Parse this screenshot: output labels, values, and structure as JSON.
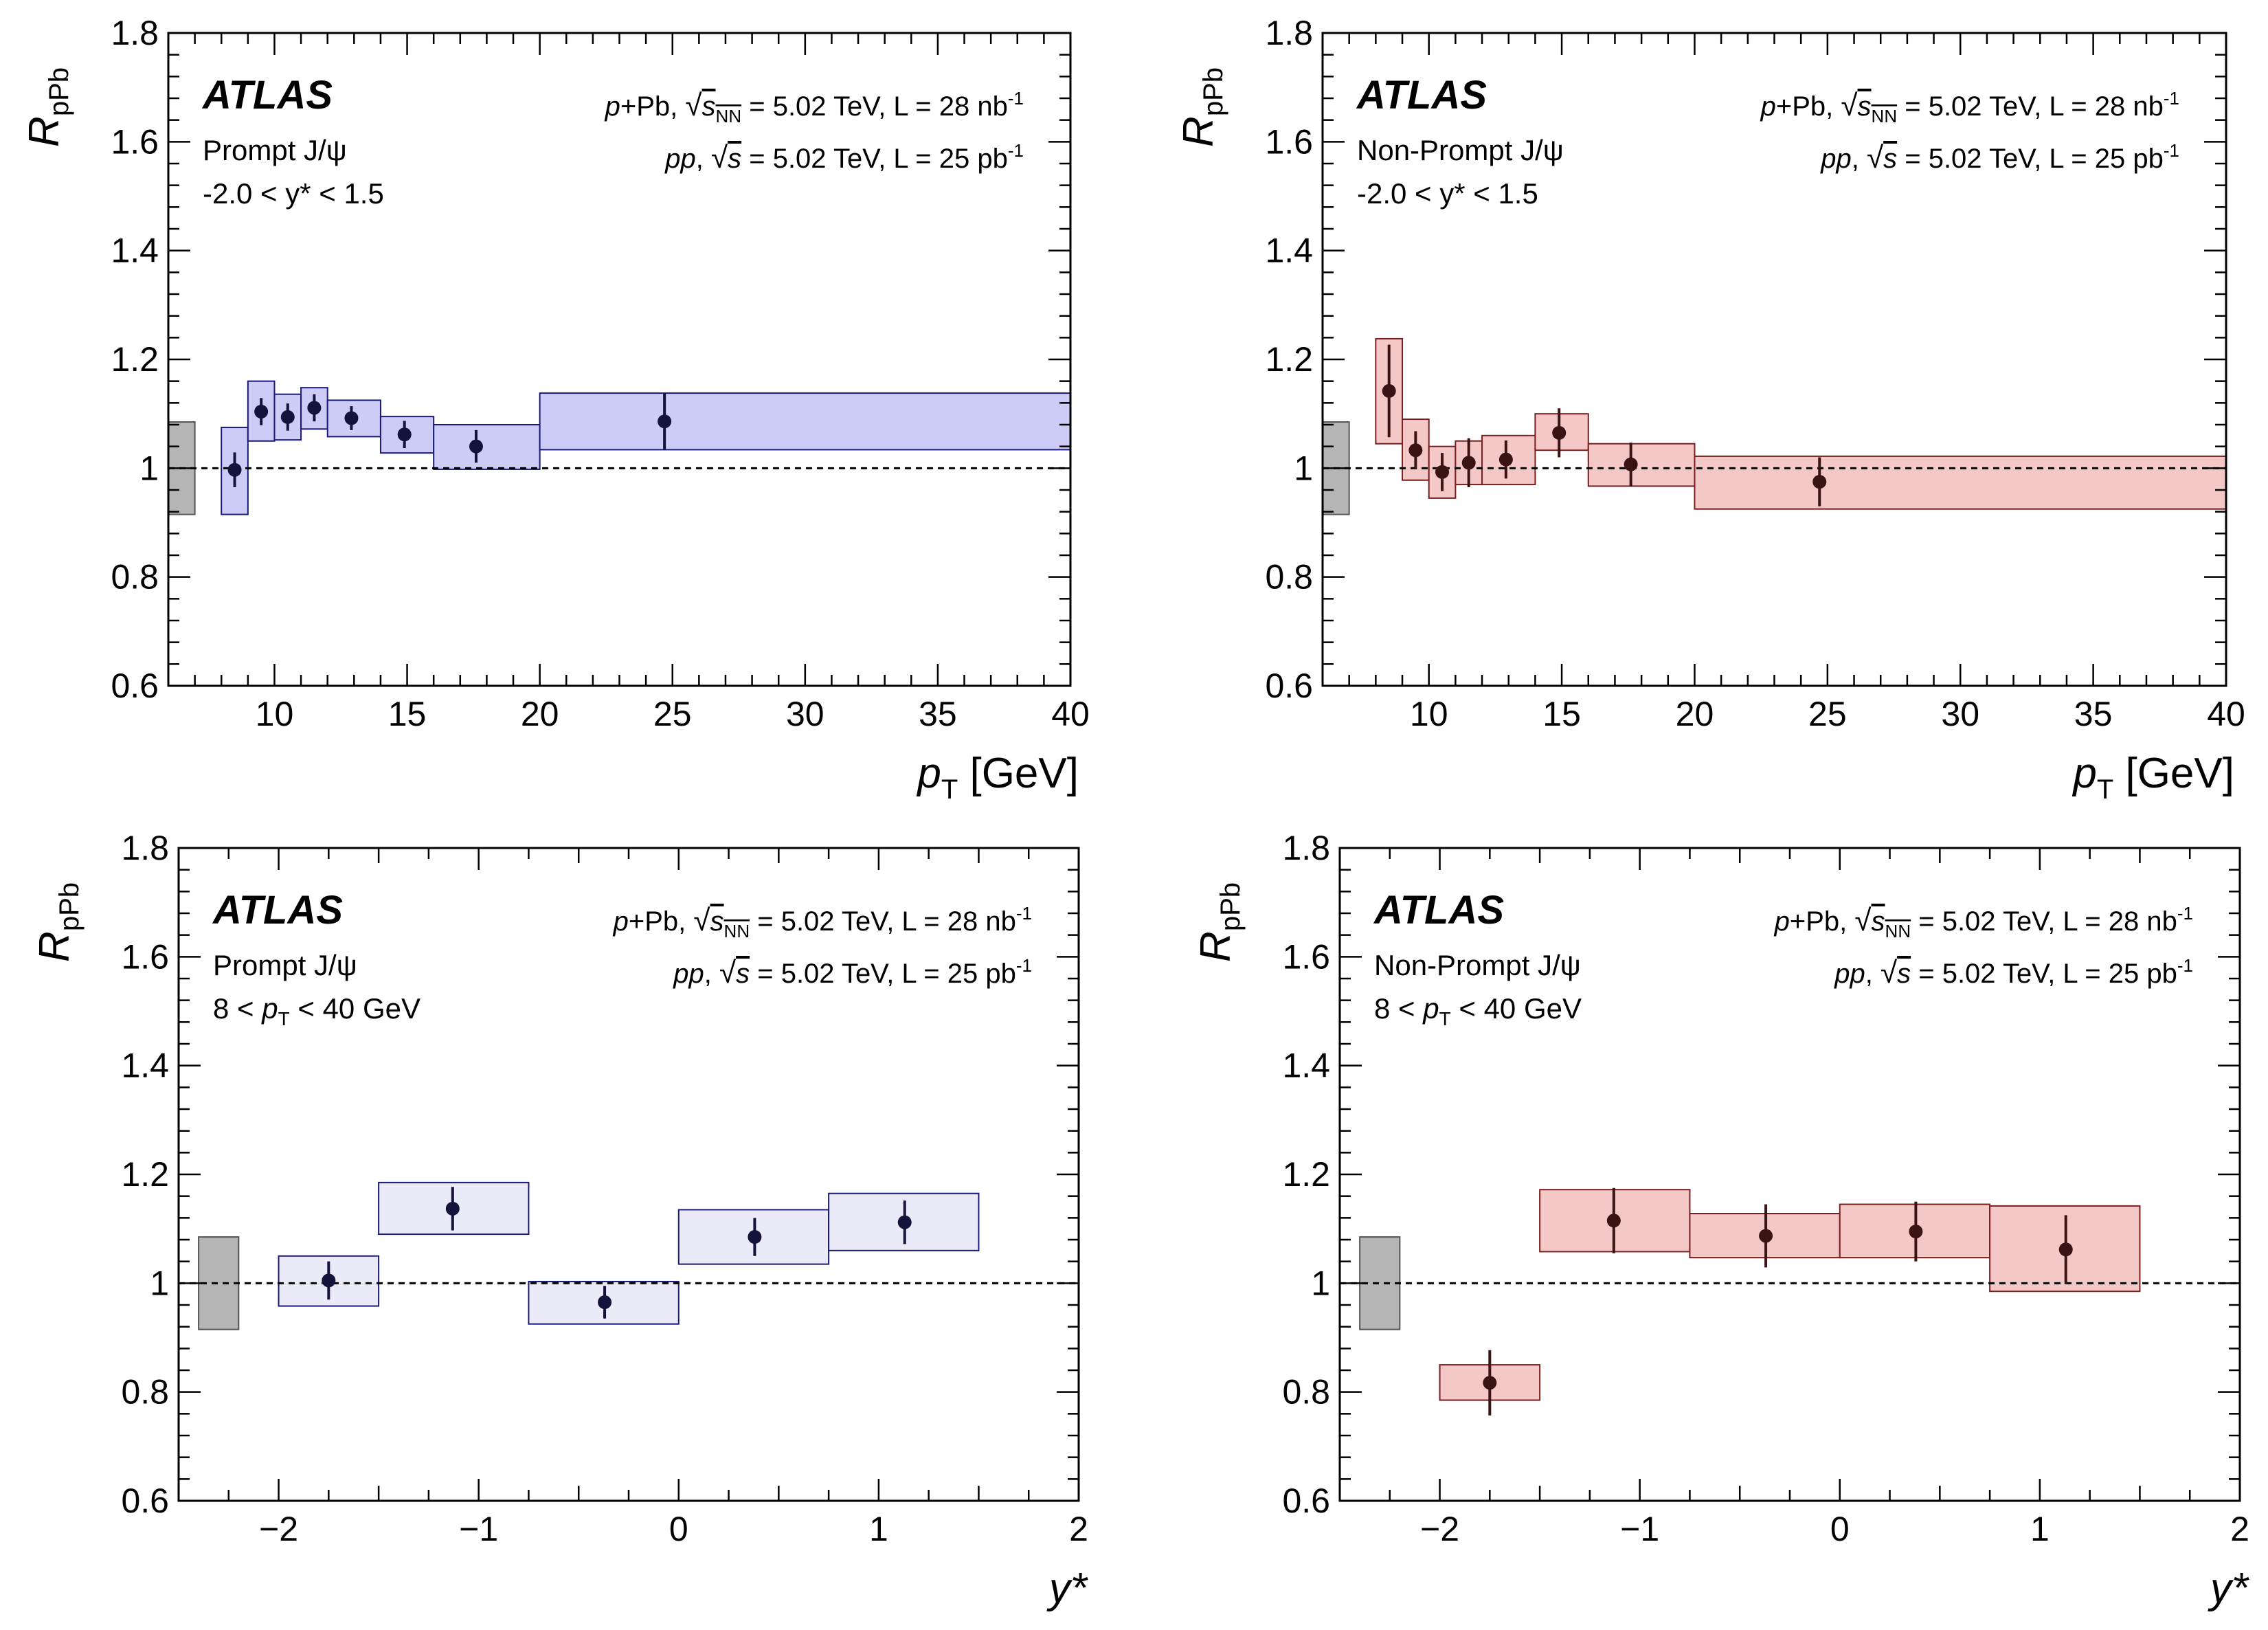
{
  "colors": {
    "blue_fill": "#ccccf7",
    "blue_stroke": "#1a1a7a",
    "blue_point": "#13133c",
    "lightblue_fill": "#eaeaf8",
    "red_fill": "#f5c8c8",
    "red_stroke": "#7a1f1f",
    "red_point": "#3a1414",
    "norm_fill": "#b5b5b5"
  },
  "chart_data": [
    {
      "type": "scatter",
      "title": "ATLAS",
      "ylabel_main": "R",
      "ylabel_sub": "pPb",
      "xlabel_main": "p",
      "xlabel_sub": "T",
      "xlabel_suffix": " [GeV]",
      "xlim": [
        6,
        40
      ],
      "ylim": [
        0.6,
        1.8
      ],
      "xticks": [
        10,
        15,
        20,
        25,
        30,
        35,
        40
      ],
      "xtick_labels": [
        "10",
        "15",
        "20",
        "25",
        "30",
        "35",
        "40"
      ],
      "yticks": [
        0.6,
        0.8,
        1.0,
        1.2,
        1.4,
        1.6,
        1.8
      ],
      "ytick_labels": [
        "0.6",
        "0.8",
        "1",
        "1.2",
        "1.4",
        "1.6",
        "1.8"
      ],
      "reference_line": 1.0,
      "legend_lines": [
        "Prompt J/ψ",
        "-2.0 < y* < 1.5"
      ],
      "info_line1": {
        "pre": "p",
        "mid": "+Pb, ",
        "sqrt": "s",
        "sqrt_sub": "NN",
        "post": " = 5.02 TeV, L = 28 nb",
        "sup": "-1"
      },
      "info_line2": {
        "pre": "pp",
        "mid": ", ",
        "sqrt": "s",
        "sqrt_sub": "",
        "post": " = 5.02 TeV, L = 25 pb",
        "sup": "-1"
      },
      "style": "blue",
      "normalization_box": {
        "x_low": 6,
        "x_high": 7,
        "y_low": 0.915,
        "y_high": 1.085
      },
      "points": [
        {
          "x": 8.5,
          "y": 0.997,
          "x_low": 8,
          "x_high": 9,
          "err": 0.032,
          "sys_low": 0.915,
          "sys_high": 1.075
        },
        {
          "x": 9.5,
          "y": 1.104,
          "x_low": 9,
          "x_high": 10,
          "err": 0.025,
          "sys_low": 1.05,
          "sys_high": 1.16
        },
        {
          "x": 10.5,
          "y": 1.094,
          "x_low": 10,
          "x_high": 11,
          "err": 0.025,
          "sys_low": 1.052,
          "sys_high": 1.136
        },
        {
          "x": 11.5,
          "y": 1.111,
          "x_low": 11,
          "x_high": 12,
          "err": 0.025,
          "sys_low": 1.072,
          "sys_high": 1.148
        },
        {
          "x": 12.9,
          "y": 1.092,
          "x_low": 12,
          "x_high": 14,
          "err": 0.022,
          "sys_low": 1.058,
          "sys_high": 1.125
        },
        {
          "x": 14.9,
          "y": 1.062,
          "x_low": 14,
          "x_high": 16,
          "err": 0.025,
          "sys_low": 1.028,
          "sys_high": 1.095
        },
        {
          "x": 17.6,
          "y": 1.04,
          "x_low": 16,
          "x_high": 20,
          "err": 0.03,
          "sys_low": 0.998,
          "sys_high": 1.08
        },
        {
          "x": 24.7,
          "y": 1.086,
          "x_low": 20,
          "x_high": 40,
          "err": 0.052,
          "sys_low": 1.034,
          "sys_high": 1.138
        }
      ]
    },
    {
      "type": "scatter",
      "title": "ATLAS",
      "ylabel_main": "R",
      "ylabel_sub": "pPb",
      "xlabel_main": "p",
      "xlabel_sub": "T",
      "xlabel_suffix": " [GeV]",
      "xlim": [
        6,
        40
      ],
      "ylim": [
        0.6,
        1.8
      ],
      "xticks": [
        10,
        15,
        20,
        25,
        30,
        35,
        40
      ],
      "xtick_labels": [
        "10",
        "15",
        "20",
        "25",
        "30",
        "35",
        "40"
      ],
      "yticks": [
        0.6,
        0.8,
        1.0,
        1.2,
        1.4,
        1.6,
        1.8
      ],
      "ytick_labels": [
        "0.6",
        "0.8",
        "1",
        "1.2",
        "1.4",
        "1.6",
        "1.8"
      ],
      "reference_line": 1.0,
      "legend_lines": [
        "Non-Prompt J/ψ",
        "-2.0 < y* < 1.5"
      ],
      "info_line1": {
        "pre": "p",
        "mid": "+Pb, ",
        "sqrt": "s",
        "sqrt_sub": "NN",
        "post": " = 5.02 TeV, L = 28 nb",
        "sup": "-1"
      },
      "info_line2": {
        "pre": "pp",
        "mid": ", ",
        "sqrt": "s",
        "sqrt_sub": "",
        "post": " = 5.02 TeV, L = 25 pb",
        "sup": "-1"
      },
      "style": "red",
      "normalization_box": {
        "x_low": 6,
        "x_high": 7,
        "y_low": 0.915,
        "y_high": 1.085
      },
      "points": [
        {
          "x": 8.5,
          "y": 1.142,
          "x_low": 8,
          "x_high": 9,
          "err": 0.085,
          "sys_low": 1.045,
          "sys_high": 1.238
        },
        {
          "x": 9.5,
          "y": 1.033,
          "x_low": 9,
          "x_high": 10,
          "err": 0.035,
          "sys_low": 0.978,
          "sys_high": 1.09
        },
        {
          "x": 10.5,
          "y": 0.993,
          "x_low": 10,
          "x_high": 11,
          "err": 0.035,
          "sys_low": 0.945,
          "sys_high": 1.04
        },
        {
          "x": 11.5,
          "y": 1.01,
          "x_low": 11,
          "x_high": 12,
          "err": 0.045,
          "sys_low": 0.97,
          "sys_high": 1.05
        },
        {
          "x": 12.9,
          "y": 1.016,
          "x_low": 12,
          "x_high": 14,
          "err": 0.035,
          "sys_low": 0.97,
          "sys_high": 1.06
        },
        {
          "x": 14.9,
          "y": 1.065,
          "x_low": 14,
          "x_high": 16,
          "err": 0.045,
          "sys_low": 1.033,
          "sys_high": 1.1
        },
        {
          "x": 17.6,
          "y": 1.007,
          "x_low": 16,
          "x_high": 20,
          "err": 0.04,
          "sys_low": 0.967,
          "sys_high": 1.045
        },
        {
          "x": 24.7,
          "y": 0.975,
          "x_low": 20,
          "x_high": 40,
          "err": 0.045,
          "sys_low": 0.925,
          "sys_high": 1.022
        }
      ]
    },
    {
      "type": "scatter",
      "title": "ATLAS",
      "ylabel_main": "R",
      "ylabel_sub": "pPb",
      "xlabel_main": "y*",
      "xlabel_sub": "",
      "xlabel_suffix": "",
      "xlim": [
        -2.5,
        2
      ],
      "ylim": [
        0.6,
        1.8
      ],
      "xticks": [
        -2,
        -1,
        0,
        1,
        2
      ],
      "xtick_labels": [
        "−2",
        "−1",
        "0",
        "1",
        "2"
      ],
      "yticks": [
        0.6,
        0.8,
        1.0,
        1.2,
        1.4,
        1.6,
        1.8
      ],
      "ytick_labels": [
        "0.6",
        "0.8",
        "1",
        "1.2",
        "1.4",
        "1.6",
        "1.8"
      ],
      "reference_line": 1.0,
      "legend_lines": [
        "Prompt J/ψ",
        "8 < pT < 40 GeV"
      ],
      "info_line1": {
        "pre": "p",
        "mid": "+Pb, ",
        "sqrt": "s",
        "sqrt_sub": "NN",
        "post": " = 5.02 TeV, L = 28 nb",
        "sup": "-1"
      },
      "info_line2": {
        "pre": "pp",
        "mid": ", ",
        "sqrt": "s",
        "sqrt_sub": "",
        "post": " = 5.02 TeV, L = 25 pb",
        "sup": "-1"
      },
      "style": "lightblue",
      "normalization_box": {
        "x_low": -2.4,
        "x_high": -2.2,
        "y_low": 0.915,
        "y_high": 1.085
      },
      "points": [
        {
          "x": -1.75,
          "y": 1.005,
          "x_low": -2.0,
          "x_high": -1.5,
          "err": 0.035,
          "sys_low": 0.958,
          "sys_high": 1.05
        },
        {
          "x": -1.13,
          "y": 1.137,
          "x_low": -1.5,
          "x_high": -0.75,
          "err": 0.04,
          "sys_low": 1.09,
          "sys_high": 1.185
        },
        {
          "x": -0.37,
          "y": 0.965,
          "x_low": -0.75,
          "x_high": 0.0,
          "err": 0.03,
          "sys_low": 0.925,
          "sys_high": 1.003
        },
        {
          "x": 0.38,
          "y": 1.085,
          "x_low": 0.0,
          "x_high": 0.75,
          "err": 0.035,
          "sys_low": 1.035,
          "sys_high": 1.135
        },
        {
          "x": 1.13,
          "y": 1.112,
          "x_low": 0.75,
          "x_high": 1.5,
          "err": 0.04,
          "sys_low": 1.06,
          "sys_high": 1.165
        }
      ]
    },
    {
      "type": "scatter",
      "title": "ATLAS",
      "ylabel_main": "R",
      "ylabel_sub": "pPb",
      "xlabel_main": "y*",
      "xlabel_sub": "",
      "xlabel_suffix": "",
      "xlim": [
        -2.5,
        2
      ],
      "ylim": [
        0.6,
        1.8
      ],
      "xticks": [
        -2,
        -1,
        0,
        1,
        2
      ],
      "xtick_labels": [
        "−2",
        "−1",
        "0",
        "1",
        "2"
      ],
      "yticks": [
        0.6,
        0.8,
        1.0,
        1.2,
        1.4,
        1.6,
        1.8
      ],
      "ytick_labels": [
        "0.6",
        "0.8",
        "1",
        "1.2",
        "1.4",
        "1.6",
        "1.8"
      ],
      "reference_line": 1.0,
      "legend_lines": [
        "Non-Prompt J/ψ",
        "8 < pT < 40 GeV"
      ],
      "info_line1": {
        "pre": "p",
        "mid": "+Pb, ",
        "sqrt": "s",
        "sqrt_sub": "NN",
        "post": " = 5.02 TeV, L = 28 nb",
        "sup": "-1"
      },
      "info_line2": {
        "pre": "pp",
        "mid": ", ",
        "sqrt": "s",
        "sqrt_sub": "",
        "post": " = 5.02 TeV, L = 25 pb",
        "sup": "-1"
      },
      "style": "red",
      "normalization_box": {
        "x_low": -2.4,
        "x_high": -2.2,
        "y_low": 0.915,
        "y_high": 1.085
      },
      "points": [
        {
          "x": -1.75,
          "y": 0.817,
          "x_low": -2.0,
          "x_high": -1.5,
          "err": 0.06,
          "sys_low": 0.785,
          "sys_high": 0.85
        },
        {
          "x": -1.13,
          "y": 1.115,
          "x_low": -1.5,
          "x_high": -0.75,
          "err": 0.06,
          "sys_low": 1.058,
          "sys_high": 1.172
        },
        {
          "x": -0.37,
          "y": 1.087,
          "x_low": -0.75,
          "x_high": 0.0,
          "err": 0.058,
          "sys_low": 1.047,
          "sys_high": 1.128
        },
        {
          "x": 0.38,
          "y": 1.095,
          "x_low": 0.0,
          "x_high": 0.75,
          "err": 0.055,
          "sys_low": 1.047,
          "sys_high": 1.145
        },
        {
          "x": 1.13,
          "y": 1.062,
          "x_low": 0.75,
          "x_high": 1.5,
          "err": 0.063,
          "sys_low": 0.985,
          "sys_high": 1.142
        }
      ]
    }
  ]
}
